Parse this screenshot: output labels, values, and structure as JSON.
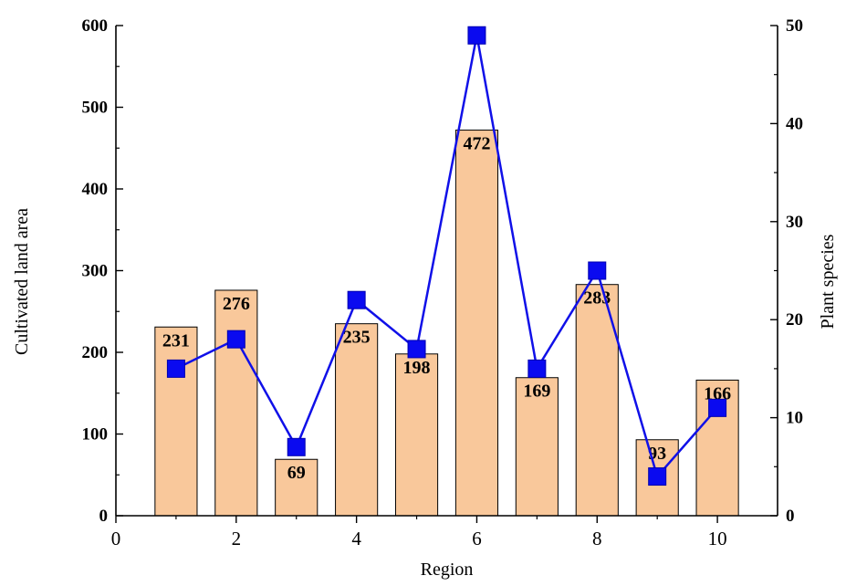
{
  "chart_data": {
    "type": "bar",
    "xlabel": "Region",
    "ylabel": "Cultivated land area",
    "y2label": "Plant species",
    "xlim": [
      0,
      11
    ],
    "ylim": [
      0,
      600
    ],
    "y2lim": [
      0,
      50
    ],
    "x_ticks": [
      0,
      2,
      4,
      6,
      8,
      10
    ],
    "y_ticks": [
      0,
      100,
      200,
      300,
      400,
      500,
      600
    ],
    "y2_ticks": [
      0,
      10,
      20,
      30,
      40,
      50
    ],
    "grid": false,
    "x": [
      1,
      2,
      3,
      4,
      5,
      6,
      7,
      8,
      9,
      10
    ],
    "series": [
      {
        "type": "bar",
        "axis": "left",
        "values": [
          231,
          276,
          69,
          235,
          198,
          472,
          169,
          283,
          93,
          166
        ],
        "color": "#F9C89B",
        "data_labels": true
      },
      {
        "type": "line",
        "axis": "right",
        "marker": "square",
        "values": [
          15,
          18,
          7,
          22,
          17,
          49,
          15,
          25,
          4,
          11
        ],
        "color": "#0A0AF0"
      }
    ]
  }
}
